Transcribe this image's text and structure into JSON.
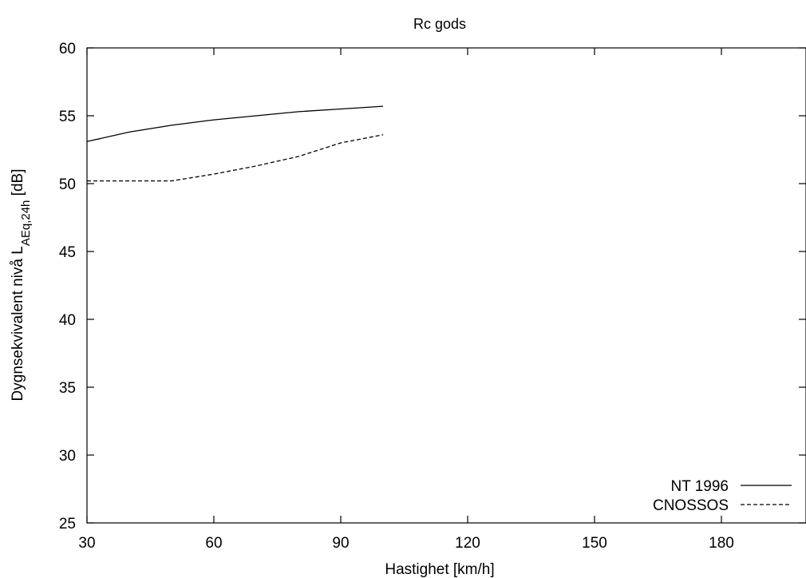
{
  "chart_data": {
    "type": "line",
    "title": "Rc gods",
    "xlabel": "Hastighet [km/h]",
    "ylabel": {
      "prefix": "Dygnsekvivalent nivå L",
      "subscript": "AEq,24h",
      "suffix": " [dB]"
    },
    "xlim": [
      30,
      200
    ],
    "ylim": [
      25,
      60
    ],
    "xticks": [
      30,
      60,
      90,
      120,
      150,
      180
    ],
    "yticks": [
      25,
      30,
      35,
      40,
      45,
      50,
      55,
      60
    ],
    "grid": false,
    "legend_position": "bottom-right",
    "series": [
      {
        "name": "NT 1996",
        "style": "solid",
        "color": "#000000",
        "x": [
          30,
          40,
          50,
          60,
          70,
          80,
          90,
          100
        ],
        "y": [
          53.1,
          53.8,
          54.3,
          54.7,
          55.0,
          55.3,
          55.5,
          55.7
        ]
      },
      {
        "name": "CNOSSOS",
        "style": "dashed",
        "color": "#000000",
        "x": [
          30,
          40,
          50,
          60,
          70,
          80,
          90,
          100
        ],
        "y": [
          50.2,
          50.2,
          50.2,
          50.7,
          51.3,
          52.0,
          53.0,
          53.6
        ]
      }
    ]
  }
}
